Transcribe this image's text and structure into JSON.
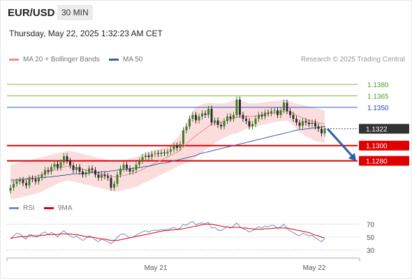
{
  "header": {
    "pair": "EUR/USD",
    "interval": "30 MIN",
    "timestamp": "Thursday, May 22, 2025 1:32:23 AM CET"
  },
  "legend": {
    "ma20": "MA 20 + Bollinger Bands",
    "ma50": "MA 50",
    "credit": "Research © 2025 Trading Central"
  },
  "rsi_legend": {
    "rsi": "RSI",
    "ma": "9MA"
  },
  "colors": {
    "candle_up": "#3a7d2c",
    "candle_down": "#2b2b2b",
    "bollinger_fill": "#fbd2d2",
    "ma20": "#f08a8a",
    "ma50": "#3a5fa8",
    "support": "#e00000",
    "resistance_green": "#7cb342",
    "pivot_blue": "#2a5bd7",
    "current_price": "#333333",
    "rsi": "#6b8ed6",
    "rsi_ma": "#e00000",
    "arrow": "#2a5fa8"
  },
  "chart_data": [
    {
      "type": "line",
      "title": "EUR/USD 30 MIN",
      "x_ticks": [
        "May 21",
        "May 22"
      ],
      "y_range": [
        1.1235,
        1.14
      ],
      "levels": [
        {
          "value": 1.138,
          "label": "1.1380",
          "kind": "resistance",
          "color": "#7cb342"
        },
        {
          "value": 1.1365,
          "label": "1.1365",
          "kind": "resistance",
          "color": "#7cb342"
        },
        {
          "value": 1.135,
          "label": "1.1350",
          "kind": "pivot",
          "color": "#2a5bd7"
        },
        {
          "value": 1.1322,
          "label": "1.1322",
          "kind": "current",
          "color": "#333333"
        },
        {
          "value": 1.13,
          "label": "1.1300",
          "kind": "support",
          "color": "#e00000"
        },
        {
          "value": 1.128,
          "label": "1.1280",
          "kind": "support",
          "color": "#e00000"
        }
      ],
      "series": [
        {
          "name": "EUR/USD",
          "kind": "candles",
          "closes": [
            1.1245,
            1.125,
            1.1253,
            1.1255,
            1.1251,
            1.1248,
            1.1257,
            1.1256,
            1.1253,
            1.1258,
            1.1262,
            1.1268,
            1.1266,
            1.1272,
            1.1276,
            1.1271,
            1.1278,
            1.1286,
            1.128,
            1.1274,
            1.1268,
            1.1272,
            1.1266,
            1.1262,
            1.1265,
            1.127,
            1.1268,
            1.1262,
            1.1258,
            1.1262,
            1.126,
            1.1258,
            1.1245,
            1.125,
            1.1262,
            1.127,
            1.1275,
            1.127,
            1.1266,
            1.1268,
            1.1275,
            1.128,
            1.1285,
            1.1287,
            1.1285,
            1.1289,
            1.129,
            1.1289,
            1.1291,
            1.129,
            1.1292,
            1.1295,
            1.13,
            1.1297,
            1.1302,
            1.132,
            1.1325,
            1.1335,
            1.134,
            1.1333,
            1.1338,
            1.1342,
            1.134,
            1.1348,
            1.133,
            1.1333,
            1.1327,
            1.1325,
            1.1332,
            1.1338,
            1.1335,
            1.134,
            1.136,
            1.134,
            1.1335,
            1.1332,
            1.1325,
            1.1328,
            1.1335,
            1.134,
            1.1338,
            1.1343,
            1.1342,
            1.1345,
            1.1346,
            1.134,
            1.1346,
            1.1356,
            1.1345,
            1.134,
            1.1335,
            1.133,
            1.1326,
            1.1332,
            1.133,
            1.1328,
            1.133,
            1.1325,
            1.1322,
            1.1316,
            1.1322
          ],
          "bollinger_upper": [
            1.1275,
            1.1276,
            1.1277,
            1.1278,
            1.1279,
            1.128,
            1.1281,
            1.1282,
            1.1283,
            1.1284,
            1.1285,
            1.1286,
            1.1287,
            1.1288,
            1.1289,
            1.129,
            1.1291,
            1.1292,
            1.1293,
            1.1293,
            1.1292,
            1.1291,
            1.129,
            1.1289,
            1.1288,
            1.1287,
            1.1286,
            1.1285,
            1.1284,
            1.1283,
            1.1282,
            1.1281,
            1.128,
            1.1279,
            1.1279,
            1.128,
            1.1281,
            1.1282,
            1.1283,
            1.1284,
            1.1285,
            1.1287,
            1.1289,
            1.1291,
            1.1292,
            1.1293,
            1.1294,
            1.1295,
            1.1296,
            1.1297,
            1.1299,
            1.1302,
            1.1306,
            1.131,
            1.1315,
            1.1322,
            1.133,
            1.1338,
            1.1345,
            1.135,
            1.1352,
            1.1354,
            1.1355,
            1.1356,
            1.1356,
            1.1355,
            1.1355,
            1.1355,
            1.1355,
            1.1356,
            1.1357,
            1.1359,
            1.136,
            1.136,
            1.1358,
            1.1357,
            1.1355,
            1.1355,
            1.1355,
            1.1356,
            1.1356,
            1.1357,
            1.1357,
            1.1358,
            1.1358,
            1.1358,
            1.1359,
            1.136,
            1.136,
            1.1358,
            1.1356,
            1.1355,
            1.1354,
            1.1353,
            1.1352,
            1.1351,
            1.135,
            1.1349,
            1.1348,
            1.1347,
            1.1346
          ],
          "bollinger_lower": [
            1.123,
            1.123,
            1.1231,
            1.1232,
            1.1233,
            1.1234,
            1.1235,
            1.1236,
            1.1237,
            1.1238,
            1.124,
            1.1242,
            1.1244,
            1.1246,
            1.1248,
            1.125,
            1.1252,
            1.1253,
            1.1254,
            1.1254,
            1.1253,
            1.1252,
            1.1251,
            1.125,
            1.1249,
            1.1248,
            1.1247,
            1.1246,
            1.1245,
            1.1244,
            1.1243,
            1.1242,
            1.1241,
            1.124,
            1.124,
            1.1241,
            1.1242,
            1.1243,
            1.1244,
            1.1245,
            1.1246,
            1.1248,
            1.125,
            1.1252,
            1.1254,
            1.1256,
            1.1258,
            1.126,
            1.1262,
            1.1264,
            1.1266,
            1.1268,
            1.127,
            1.1272,
            1.1274,
            1.1276,
            1.1278,
            1.128,
            1.1282,
            1.1285,
            1.1288,
            1.1291,
            1.1294,
            1.1297,
            1.13,
            1.1303,
            1.1306,
            1.1308,
            1.131,
            1.1312,
            1.1314,
            1.1315,
            1.1316,
            1.1318,
            1.132,
            1.1322,
            1.1323,
            1.1324,
            1.1325,
            1.1326,
            1.1327,
            1.1328,
            1.1329,
            1.133,
            1.1331,
            1.1331,
            1.1332,
            1.1332,
            1.1333,
            1.133,
            1.1326,
            1.1322,
            1.1318,
            1.1315,
            1.1312,
            1.131,
            1.1308,
            1.1306,
            1.1305,
            1.1304,
            1.1303
          ]
        },
        {
          "name": "MA 20",
          "values": [
            1.1252,
            1.1253,
            1.1254,
            1.1255,
            1.1256,
            1.1257,
            1.1258,
            1.1259,
            1.126,
            1.1261,
            1.1262,
            1.1264,
            1.1265,
            1.1267,
            1.1268,
            1.127,
            1.1271,
            1.1272,
            1.1273,
            1.1273,
            1.1272,
            1.1271,
            1.127,
            1.1269,
            1.1268,
            1.1267,
            1.1266,
            1.1265,
            1.1264,
            1.1263,
            1.1262,
            1.1261,
            1.126,
            1.1259,
            1.1259,
            1.126,
            1.1261,
            1.1262,
            1.1263,
            1.1264,
            1.1265,
            1.1267,
            1.1269,
            1.1271,
            1.1273,
            1.1275,
            1.1277,
            1.1279,
            1.1281,
            1.1283,
            1.1285,
            1.1287,
            1.1289,
            1.1291,
            1.1294,
            1.1298,
            1.1302,
            1.1306,
            1.131,
            1.1313,
            1.1316,
            1.1319,
            1.1322,
            1.1325,
            1.1328,
            1.1329,
            1.133,
            1.1331,
            1.1332,
            1.1333,
            1.1334,
            1.1336,
            1.1337,
            1.1338,
            1.1338,
            1.1338,
            1.1338,
            1.1338,
            1.1339,
            1.134,
            1.134,
            1.1341,
            1.1342,
            1.1342,
            1.1343,
            1.1343,
            1.1344,
            1.1345,
            1.1345,
            1.1344,
            1.1342,
            1.134,
            1.1338,
            1.1336,
            1.1334,
            1.1333,
            1.1332,
            1.1331,
            1.133,
            1.1329,
            1.1328
          ]
        },
        {
          "name": "MA 50",
          "values": [
            1.1255,
            1.1255,
            1.1255,
            1.1256,
            1.1256,
            1.1256,
            1.1257,
            1.1257,
            1.1257,
            1.1258,
            1.1258,
            1.1258,
            1.1259,
            1.1259,
            1.126,
            1.126,
            1.1261,
            1.1261,
            1.1262,
            1.1262,
            1.1263,
            1.1263,
            1.1263,
            1.1264,
            1.1264,
            1.1264,
            1.1265,
            1.1265,
            1.1265,
            1.1266,
            1.1266,
            1.1266,
            1.1267,
            1.1267,
            1.1268,
            1.1268,
            1.1269,
            1.1269,
            1.127,
            1.127,
            1.1271,
            1.1271,
            1.1272,
            1.1273,
            1.1273,
            1.1274,
            1.1275,
            1.1276,
            1.1277,
            1.1277,
            1.1278,
            1.1279,
            1.128,
            1.1281,
            1.1282,
            1.1283,
            1.1284,
            1.1285,
            1.1286,
            1.1287,
            1.1289,
            1.129,
            1.1291,
            1.1292,
            1.1293,
            1.1294,
            1.1295,
            1.1296,
            1.1297,
            1.1298,
            1.1299,
            1.13,
            1.1301,
            1.1302,
            1.1303,
            1.1304,
            1.1305,
            1.1306,
            1.1307,
            1.1308,
            1.1309,
            1.131,
            1.1311,
            1.1312,
            1.1313,
            1.1314,
            1.1315,
            1.1316,
            1.1317,
            1.1318,
            1.1319,
            1.132,
            1.1321,
            1.1321,
            1.1322,
            1.1322,
            1.1323,
            1.1323,
            1.1324,
            1.1324,
            1.1325
          ]
        }
      ],
      "forecast_arrow": {
        "from": 1.1322,
        "to": 1.128
      }
    },
    {
      "type": "line",
      "title": "RSI",
      "y_ticks": [
        30,
        50,
        70
      ],
      "y_range": [
        20,
        80
      ],
      "series": [
        {
          "name": "RSI",
          "values": [
            48,
            52,
            56,
            55,
            50,
            47,
            54,
            53,
            50,
            52,
            56,
            58,
            54,
            57,
            55,
            50,
            56,
            60,
            55,
            52,
            49,
            52,
            48,
            45,
            48,
            52,
            50,
            46,
            43,
            47,
            45,
            43,
            40,
            44,
            50,
            54,
            55,
            52,
            49,
            50,
            53,
            56,
            58,
            60,
            58,
            60,
            61,
            60,
            62,
            61,
            62,
            63,
            65,
            62,
            64,
            70,
            68,
            72,
            74,
            69,
            71,
            72,
            70,
            73,
            64,
            65,
            61,
            60,
            63,
            66,
            64,
            67,
            72,
            66,
            63,
            61,
            58,
            60,
            63,
            66,
            64,
            67,
            66,
            68,
            68,
            63,
            66,
            70,
            63,
            60,
            57,
            54,
            52,
            56,
            54,
            52,
            53,
            49,
            46,
            43,
            48
          ]
        },
        {
          "name": "9MA",
          "values": [
            48,
            49,
            50,
            51,
            51,
            51,
            52,
            52,
            52,
            52,
            53,
            53,
            54,
            54,
            54,
            54,
            55,
            55,
            55,
            55,
            54,
            54,
            53,
            52,
            51,
            50,
            50,
            49,
            48,
            47,
            47,
            46,
            45,
            45,
            45,
            46,
            47,
            48,
            49,
            50,
            51,
            52,
            53,
            54,
            55,
            56,
            57,
            58,
            59,
            60,
            60,
            61,
            61,
            62,
            62,
            63,
            64,
            65,
            66,
            67,
            68,
            69,
            70,
            70,
            70,
            69,
            68,
            67,
            66,
            66,
            65,
            65,
            65,
            65,
            64,
            64,
            63,
            63,
            62,
            62,
            62,
            63,
            63,
            63,
            64,
            64,
            64,
            64,
            64,
            63,
            62,
            61,
            60,
            59,
            58,
            57,
            55,
            53,
            52,
            50,
            49
          ]
        }
      ]
    }
  ]
}
